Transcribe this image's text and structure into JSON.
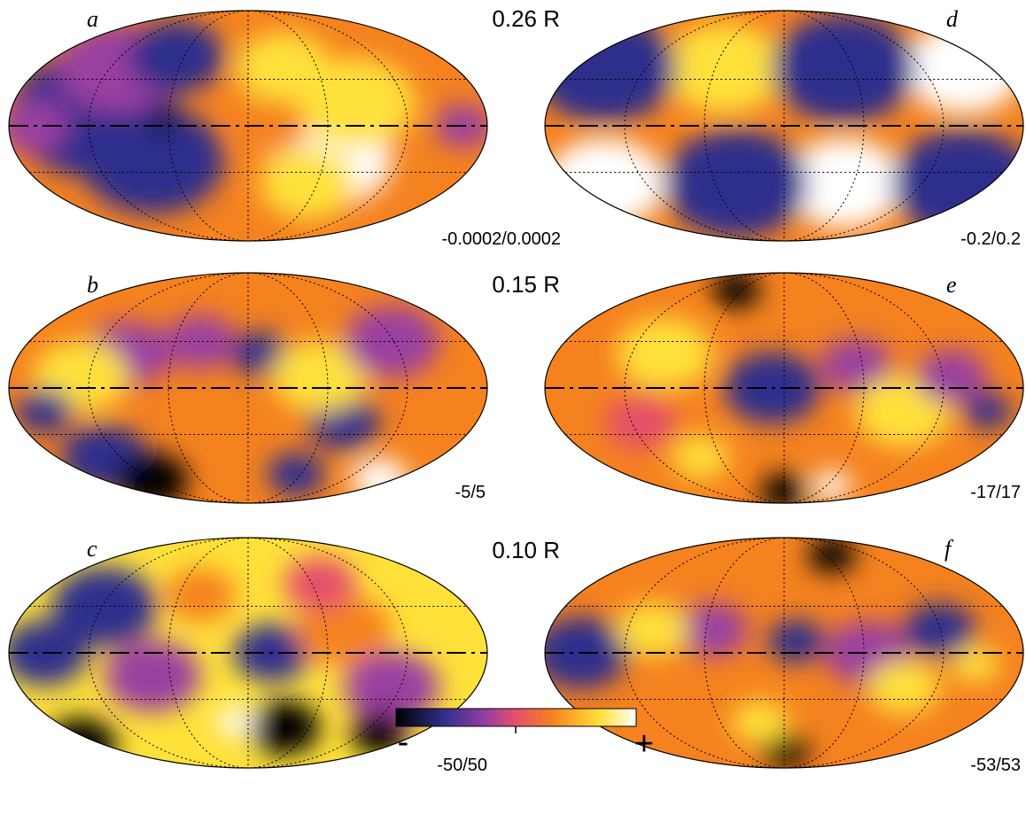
{
  "panels": [
    {
      "letter": "a",
      "radius": "0.26 R",
      "range": "-0.0002/0.0002"
    },
    {
      "letter": "b",
      "radius": "0.15 R",
      "range": "-5/5"
    },
    {
      "letter": "c",
      "radius": "0.10 R",
      "range": "-50/50"
    },
    {
      "letter": "d",
      "range": "-0.2/0.2"
    },
    {
      "letter": "e",
      "range": "-17/17"
    },
    {
      "letter": "f",
      "range": "-53/53"
    }
  ],
  "colorbar": {
    "min_label": "-",
    "max_label": "+"
  }
}
